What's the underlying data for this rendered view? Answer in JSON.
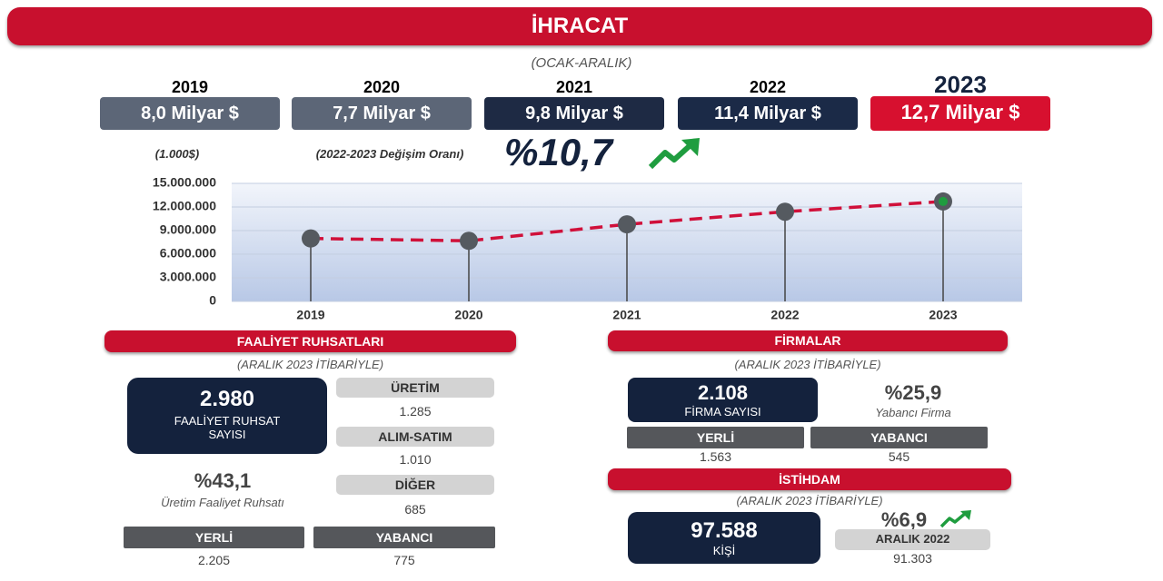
{
  "header": {
    "title": "İHRACAT",
    "subtitle": "(OCAK-ARALIK)"
  },
  "yearly": [
    {
      "year": "2019",
      "value": "8,0 Milyar $"
    },
    {
      "year": "2020",
      "value": "7,7 Milyar $"
    },
    {
      "year": "2021",
      "value": "9,8 Milyar $"
    },
    {
      "year": "2022",
      "value": "11,4 Milyar $"
    },
    {
      "year": "2023",
      "value": "12,7 Milyar $"
    }
  ],
  "change": {
    "label": "(2022-2023 Değişim Oranı)",
    "value": "%10,7"
  },
  "chart_data": {
    "type": "line",
    "y_label": "(1.000$)",
    "categories": [
      "2019",
      "2020",
      "2021",
      "2022",
      "2023"
    ],
    "series": [
      {
        "name": "İhracat",
        "color": "#d0103a",
        "values": [
          8000000,
          7700000,
          9800000,
          11400000,
          12700000
        ]
      }
    ],
    "marker_color": "#555a60",
    "highlight_color": "#1f9d3f",
    "ylim": [
      0,
      15000000
    ],
    "yticks": [
      0,
      {
        "value": 3000000,
        "label": "3.000.000"
      },
      {
        "value": 6000000,
        "label": "6.000.000"
      },
      {
        "value": 9000000,
        "label": "9.000.000"
      },
      {
        "value": 12000000,
        "label": "12.000.000"
      },
      {
        "value": 15000000,
        "label": "15.000.000"
      }
    ],
    "grid": true
  },
  "licenses": {
    "title": "FAALİYET RUHSATLARI",
    "subtitle": "(ARALIK 2023 İTİBARİYLE)",
    "total": "2.980",
    "total_label": [
      "FAALİYET RUHSAT",
      "SAYISI"
    ],
    "breakdown": [
      {
        "label": "ÜRETİM",
        "value": "1.285"
      },
      {
        "label": "ALIM-SATIM",
        "value": "1.010"
      },
      {
        "label": "DİĞER",
        "value": "685"
      }
    ],
    "share": "%43,1",
    "share_label": "Üretim Faaliyet Ruhsatı",
    "origin": [
      {
        "label": "YERLİ",
        "value": "2.205"
      },
      {
        "label": "YABANCI",
        "value": "775"
      }
    ]
  },
  "firms": {
    "title": "FİRMALAR",
    "subtitle": "(ARALIK 2023 İTİBARİYLE)",
    "total": "2.108",
    "total_label": "FİRMA SAYISI",
    "share": "%25,9",
    "share_label": "Yabancı Firma",
    "origin": [
      {
        "label": "YERLİ",
        "value": "1.563"
      },
      {
        "label": "YABANCI",
        "value": "545"
      }
    ]
  },
  "employment": {
    "title": "İSTİHDAM",
    "subtitle": "(ARALIK 2023 İTİBARİYLE)",
    "total": "97.588",
    "total_label": "KİŞİ",
    "change": "%6,9",
    "previous_label": "ARALIK 2022",
    "previous_value": "91.303"
  }
}
